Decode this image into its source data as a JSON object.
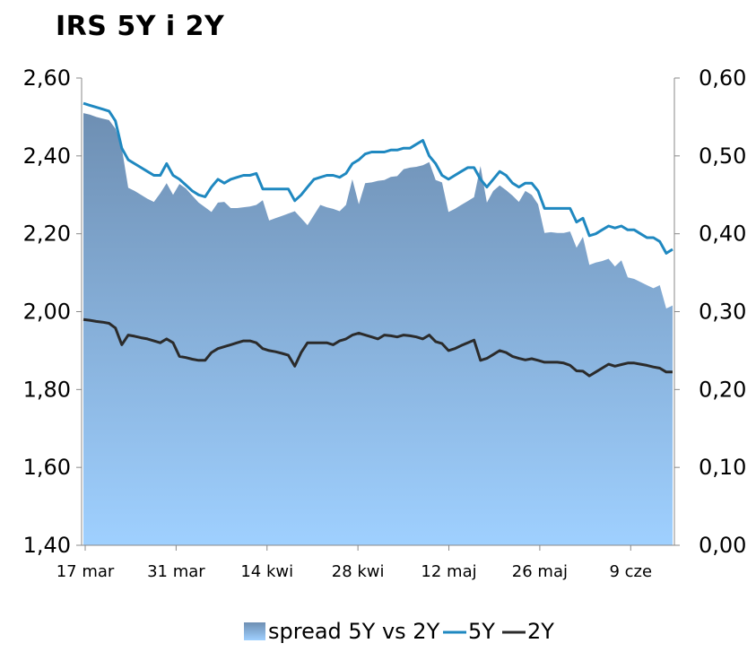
{
  "chart_data": {
    "type": "area",
    "title": "IRS 5Y i 2Y",
    "x_tick_labels": [
      "17 mar",
      "31 mar",
      "14 kwi",
      "28 kwi",
      "12 maj",
      "26 maj",
      "9 cze"
    ],
    "y_left": {
      "range": [
        1.4,
        2.6
      ],
      "ticks": [
        "1,40",
        "1,60",
        "1,80",
        "2,00",
        "2,20",
        "2,40",
        "2,60"
      ]
    },
    "y_right": {
      "range": [
        0.0,
        0.6
      ],
      "ticks": [
        "0,00",
        "0,10",
        "0,20",
        "0,30",
        "0,40",
        "0,50",
        "0,60"
      ]
    },
    "grid": false,
    "legend_position": "bottom",
    "series": [
      {
        "name": "spread 5Y vs 2Y",
        "axis": "right",
        "kind": "area",
        "color_top": "#6e8fb3",
        "color_bottom": "#9fd0ff",
        "values": [
          0.555,
          0.553,
          0.55,
          0.548,
          0.546,
          0.535,
          0.51,
          0.459,
          0.455,
          0.45,
          0.445,
          0.441,
          0.452,
          0.465,
          0.45,
          0.464,
          0.458,
          0.449,
          0.44,
          0.434,
          0.428,
          0.44,
          0.441,
          0.433,
          0.433,
          0.434,
          0.435,
          0.437,
          0.443,
          0.417,
          0.42,
          0.423,
          0.426,
          0.429,
          0.42,
          0.411,
          0.424,
          0.437,
          0.434,
          0.432,
          0.429,
          0.437,
          0.47,
          0.438,
          0.465,
          0.466,
          0.468,
          0.469,
          0.473,
          0.474,
          0.483,
          0.485,
          0.486,
          0.488,
          0.492,
          0.469,
          0.466,
          0.428,
          0.432,
          0.437,
          0.442,
          0.447,
          0.487,
          0.44,
          0.455,
          0.462,
          0.456,
          0.449,
          0.441,
          0.455,
          0.45,
          0.438,
          0.401,
          0.402,
          0.401,
          0.401,
          0.403,
          0.382,
          0.396,
          0.36,
          0.363,
          0.365,
          0.368,
          0.358,
          0.366,
          0.344,
          0.342,
          0.338,
          0.334,
          0.33,
          0.334,
          0.304,
          0.308
        ]
      },
      {
        "name": "5Y",
        "axis": "left",
        "kind": "line",
        "color": "#1f88c0",
        "values": [
          2.535,
          2.53,
          2.525,
          2.52,
          2.515,
          2.49,
          2.42,
          2.39,
          2.38,
          2.37,
          2.36,
          2.35,
          2.35,
          2.38,
          2.35,
          2.34,
          2.325,
          2.31,
          2.3,
          2.295,
          2.32,
          2.34,
          2.33,
          2.34,
          2.345,
          2.35,
          2.35,
          2.355,
          2.315,
          2.315,
          2.315,
          2.315,
          2.315,
          2.285,
          2.3,
          2.32,
          2.34,
          2.345,
          2.35,
          2.35,
          2.345,
          2.355,
          2.38,
          2.39,
          2.405,
          2.41,
          2.41,
          2.41,
          2.415,
          2.415,
          2.42,
          2.42,
          2.43,
          2.44,
          2.4,
          2.38,
          2.35,
          2.34,
          2.35,
          2.36,
          2.37,
          2.37,
          2.34,
          2.32,
          2.34,
          2.36,
          2.35,
          2.33,
          2.32,
          2.33,
          2.33,
          2.31,
          2.265,
          2.265,
          2.265,
          2.265,
          2.265,
          2.23,
          2.24,
          2.195,
          2.2,
          2.21,
          2.22,
          2.215,
          2.22,
          2.21,
          2.21,
          2.2,
          2.19,
          2.19,
          2.18,
          2.15,
          2.16
        ]
      },
      {
        "name": "2Y",
        "axis": "left",
        "kind": "line",
        "color": "#2b2b2b",
        "values": [
          1.98,
          1.978,
          1.975,
          1.973,
          1.97,
          1.958,
          1.915,
          1.94,
          1.937,
          1.933,
          1.93,
          1.925,
          1.92,
          1.93,
          1.92,
          1.885,
          1.882,
          1.878,
          1.875,
          1.875,
          1.895,
          1.905,
          1.91,
          1.915,
          1.92,
          1.925,
          1.925,
          1.92,
          1.905,
          1.9,
          1.897,
          1.893,
          1.888,
          1.86,
          1.895,
          1.92,
          1.92,
          1.92,
          1.92,
          1.915,
          1.925,
          1.93,
          1.94,
          1.945,
          1.94,
          1.935,
          1.93,
          1.94,
          1.938,
          1.935,
          1.94,
          1.938,
          1.935,
          1.93,
          1.94,
          1.923,
          1.918,
          1.9,
          1.905,
          1.913,
          1.92,
          1.927,
          1.875,
          1.88,
          1.89,
          1.9,
          1.895,
          1.885,
          1.88,
          1.876,
          1.879,
          1.875,
          1.87,
          1.87,
          1.87,
          1.868,
          1.862,
          1.848,
          1.847,
          1.835,
          1.845,
          1.855,
          1.865,
          1.86,
          1.864,
          1.868,
          1.868,
          1.865,
          1.862,
          1.858,
          1.855,
          1.845,
          1.845
        ]
      }
    ]
  }
}
